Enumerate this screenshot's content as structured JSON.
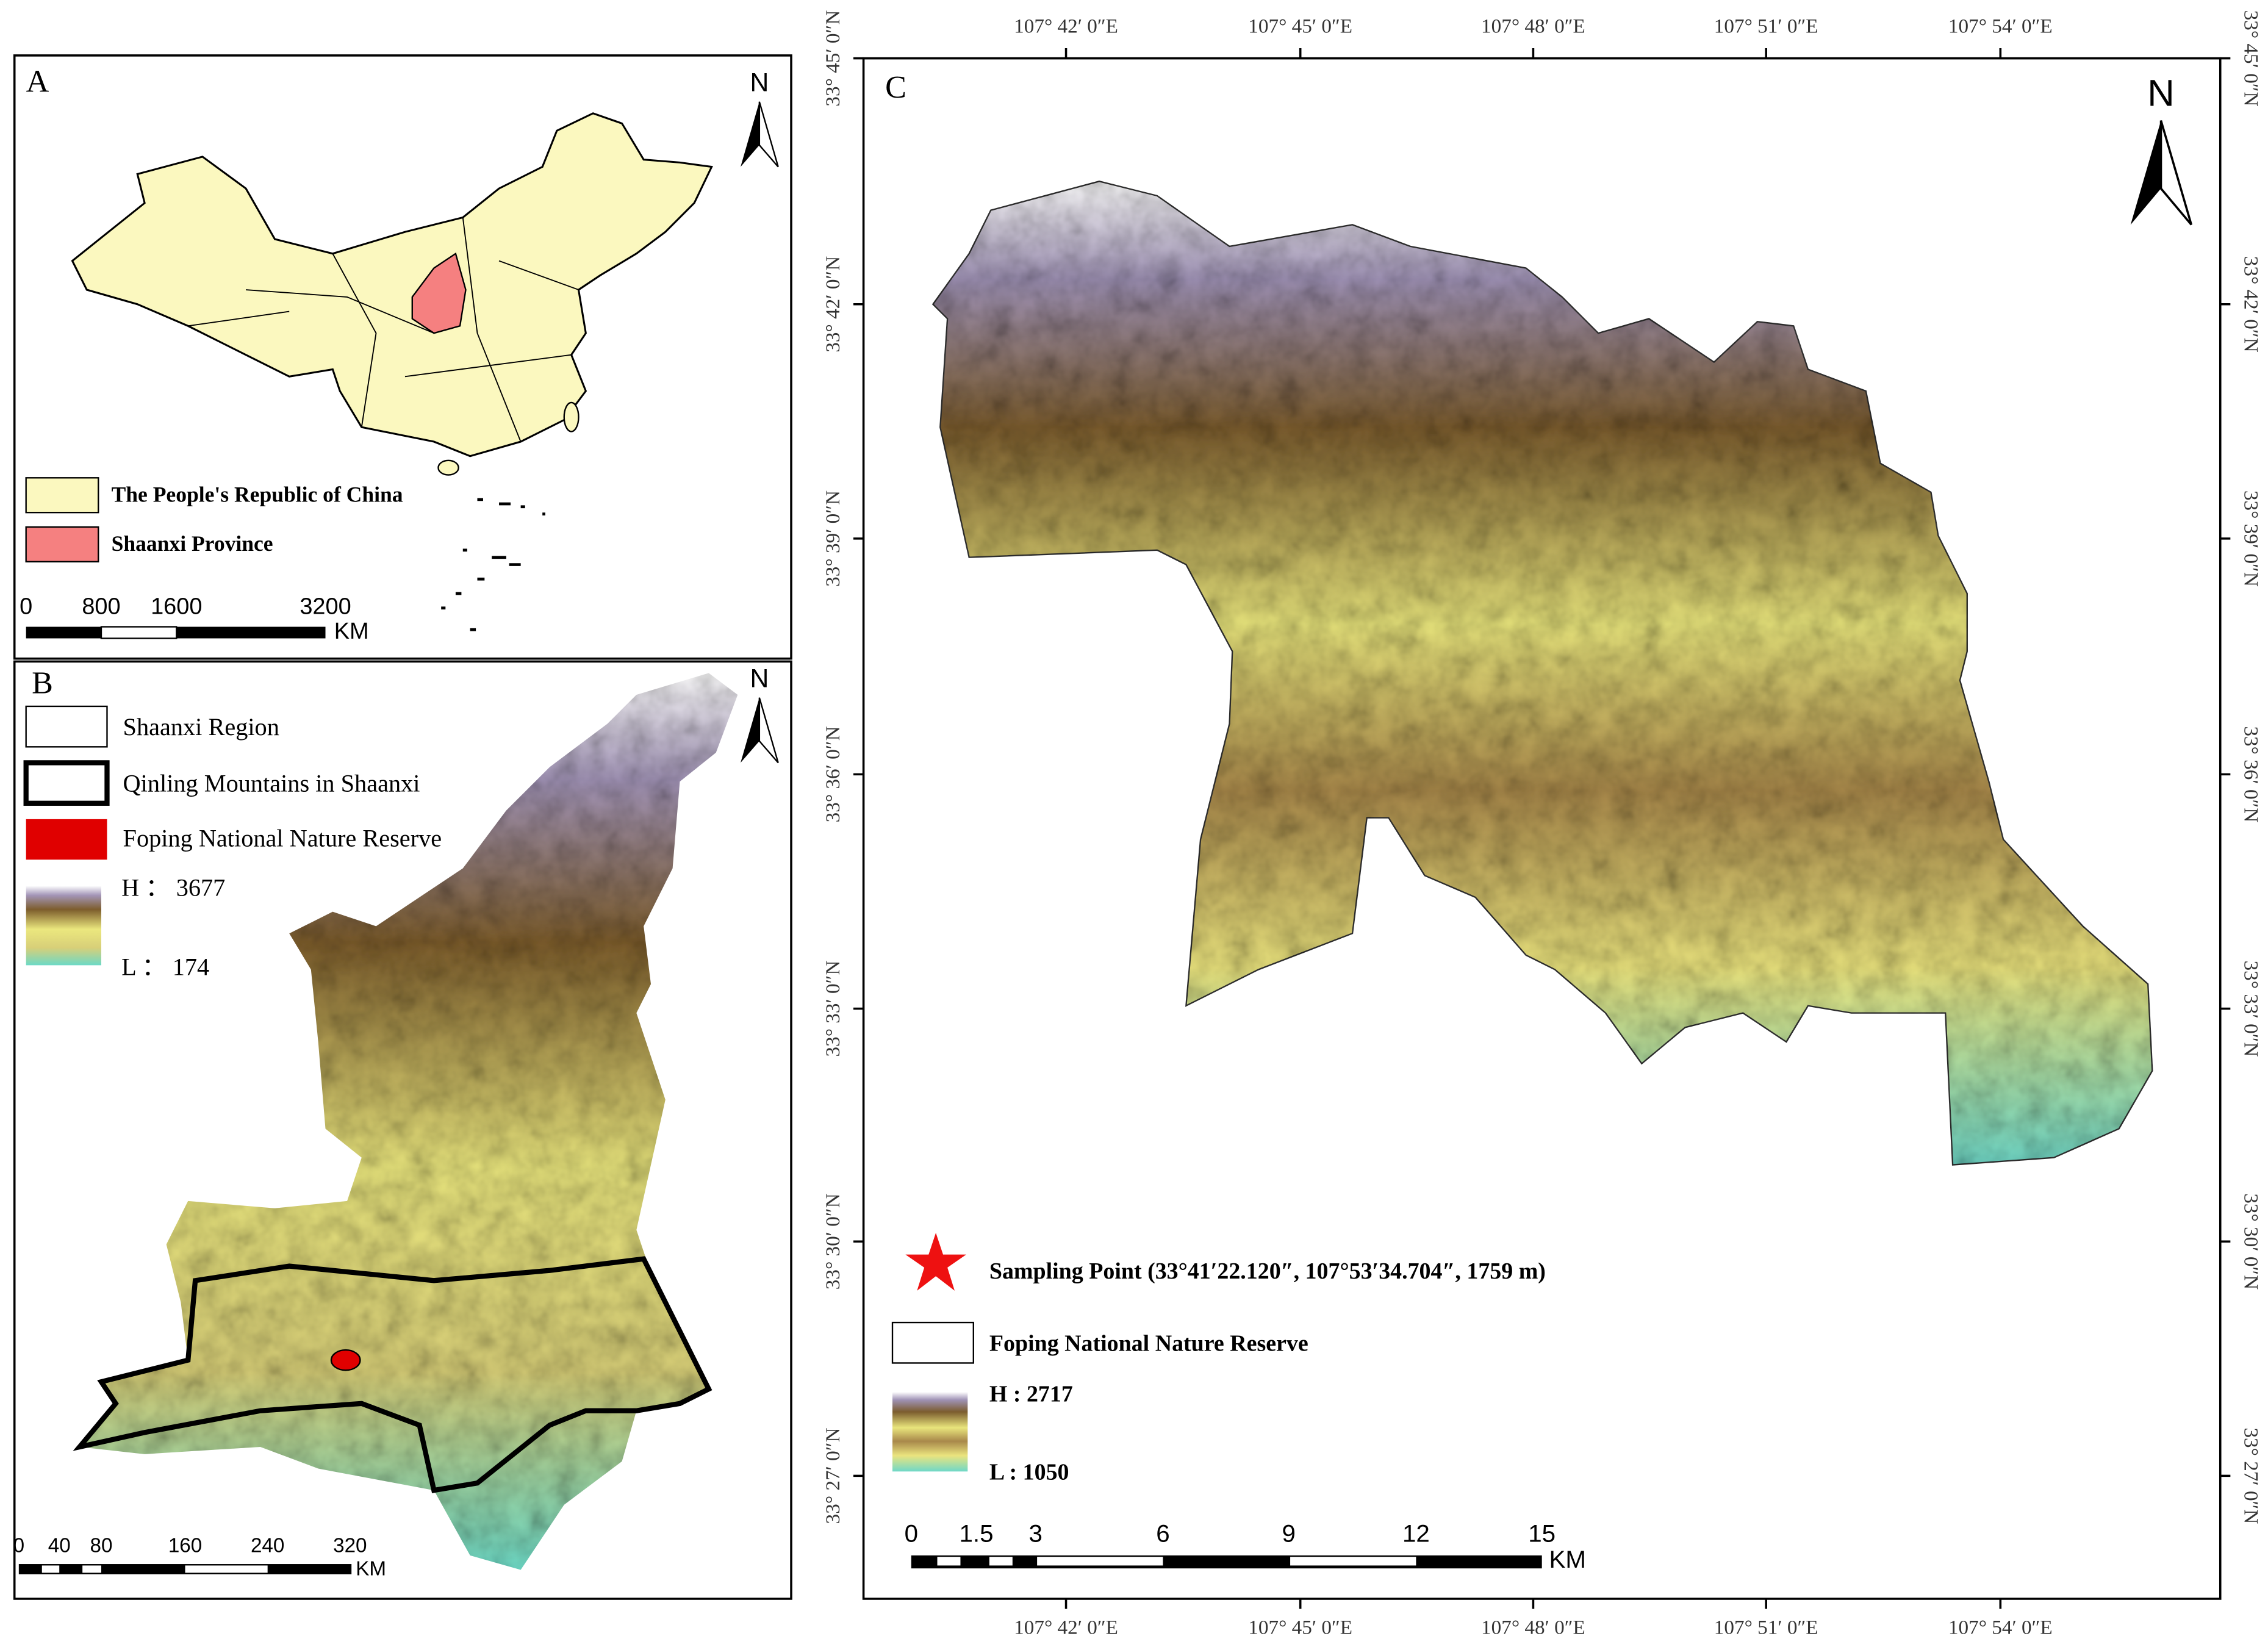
{
  "panels": {
    "a": {
      "label": "A",
      "north": "N",
      "legend": [
        "The People's Republic of China",
        "Shaanxi Province"
      ],
      "scale_bar": {
        "ticks": [
          "0",
          "800",
          "1600",
          "3200"
        ],
        "unit": "KM"
      }
    },
    "b": {
      "label": "B",
      "north": "N",
      "legend": [
        "Shaanxi Region",
        "Qinling Mountains in Shaanxi",
        "Foping National Nature Reserve"
      ],
      "elevation": {
        "high": "H ： 3677",
        "low": "L ： 174"
      },
      "scale_bar": {
        "ticks": [
          "0",
          "40",
          "80",
          "160",
          "240",
          "320"
        ],
        "unit": "KM"
      }
    },
    "c": {
      "label": "C",
      "north": "N",
      "longitude_labels": [
        "107° 42′ 0″E",
        "107° 45′ 0″E",
        "107° 48′ 0″E",
        "107° 51′ 0″E",
        "107° 54′ 0″E"
      ],
      "latitude_labels": [
        "33° 45′ 0″N",
        "33° 42′ 0″N",
        "33° 39′ 0″N",
        "33° 36′ 0″N",
        "33° 33′ 0″N",
        "33° 30′ 0″N",
        "33° 27′ 0″N"
      ],
      "legend": {
        "sampling_point": "Sampling Point (33°41′22.120″, 107°53′34.704″, 1759 m)",
        "reserve": "Foping National Nature Reserve",
        "high": "H : 2717",
        "low": "L : 1050"
      },
      "scale_bar": {
        "ticks": [
          "0",
          "1.5",
          "3",
          "6",
          "9",
          "12",
          "15"
        ],
        "unit": "KM"
      }
    }
  }
}
